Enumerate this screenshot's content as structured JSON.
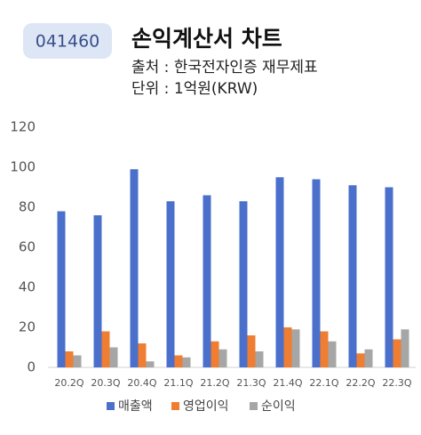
{
  "chart_data": {
    "type": "bar",
    "code": "041460",
    "title": "손익계산서 차트",
    "subtitle": [
      "출처 : 한국전자인증 재무제표",
      "단위 : 1억원(KRW)"
    ],
    "categories": [
      "20.2Q",
      "20.3Q",
      "20.4Q",
      "21.1Q",
      "21.2Q",
      "21.3Q",
      "21.4Q",
      "22.1Q",
      "22.2Q",
      "22.3Q"
    ],
    "series": [
      {
        "name": "매출액",
        "color": "#4a70cc",
        "values": [
          78,
          76,
          99,
          83,
          86,
          83,
          95,
          94,
          91,
          90
        ]
      },
      {
        "name": "영업이익",
        "color": "#ef7d32",
        "values": [
          8,
          18,
          12,
          6,
          13,
          16,
          20,
          18,
          7,
          14
        ]
      },
      {
        "name": "순이익",
        "color": "#a6a6a6",
        "values": [
          6,
          10,
          3,
          5,
          9,
          8,
          19,
          13,
          9,
          19
        ]
      }
    ],
    "ylim": [
      0,
      120
    ],
    "yticks": [
      0,
      20,
      40,
      60,
      80,
      100,
      120
    ],
    "grid": false,
    "legend": "bottom"
  }
}
